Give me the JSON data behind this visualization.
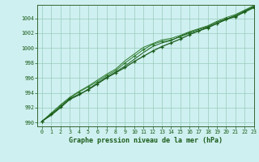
{
  "xlabel": "Graphe pression niveau de la mer (hPa)",
  "ylim": [
    989.5,
    1005.8
  ],
  "xlim": [
    -0.5,
    23
  ],
  "yticks": [
    990,
    992,
    994,
    996,
    998,
    1000,
    1002,
    1004
  ],
  "xticks": [
    0,
    1,
    2,
    3,
    4,
    5,
    6,
    7,
    8,
    9,
    10,
    11,
    12,
    13,
    14,
    15,
    16,
    17,
    18,
    19,
    20,
    21,
    22,
    23
  ],
  "bg_color": "#cff0f0",
  "grid_color": "#99ccbb",
  "line_color_dark": "#1a5c1a",
  "line_color_mid": "#2d7a2d",
  "series1": [
    990.2,
    991.1,
    992.1,
    993.2,
    993.8,
    994.4,
    995.2,
    996.0,
    996.7,
    997.4,
    998.2,
    998.9,
    999.6,
    1000.2,
    1000.7,
    1001.2,
    1001.8,
    1002.3,
    1002.8,
    1003.3,
    1003.9,
    1004.2,
    1004.9,
    1005.5
  ],
  "series2": [
    990.2,
    991.2,
    992.3,
    993.3,
    994.1,
    994.8,
    995.5,
    996.3,
    997.0,
    998.0,
    998.9,
    999.8,
    1000.5,
    1000.9,
    1001.1,
    1001.5,
    1002.0,
    1002.3,
    1002.7,
    1003.3,
    1003.8,
    1004.3,
    1004.8,
    1005.4
  ],
  "series3": [
    990.2,
    991.0,
    992.0,
    993.1,
    993.7,
    994.5,
    995.3,
    996.1,
    996.8,
    997.6,
    998.5,
    999.4,
    1000.2,
    1000.7,
    1001.0,
    1001.6,
    1002.1,
    1002.5,
    1002.9,
    1003.5,
    1003.9,
    1004.4,
    1005.0,
    1005.6
  ],
  "series4": [
    990.2,
    991.3,
    992.4,
    993.4,
    994.2,
    994.9,
    995.7,
    996.5,
    997.2,
    998.3,
    999.2,
    1000.1,
    1000.6,
    1001.1,
    1001.3,
    1001.7,
    1002.2,
    1002.6,
    1003.0,
    1003.6,
    1004.1,
    1004.5,
    1005.1,
    1005.7
  ]
}
